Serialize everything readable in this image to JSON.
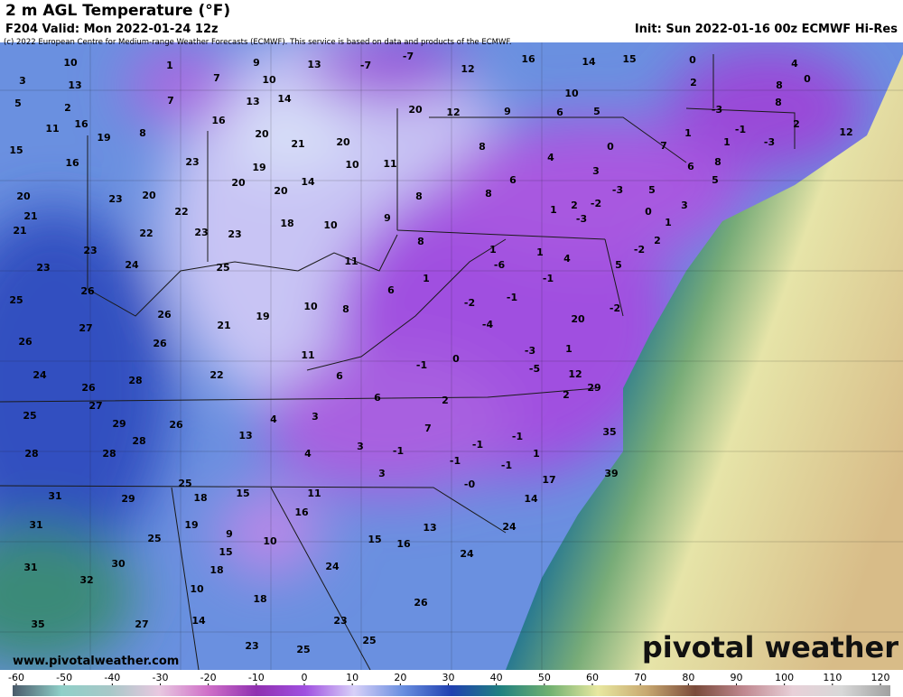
{
  "header": {
    "title": "2 m AGL Temperature (°F)",
    "valid": "F204 Valid: Mon 2022-01-24 12z",
    "init": "Init: Sun 2022-01-16 00z ECMWF Hi-Res",
    "credit": "(c) 2022 European Centre for Medium-range Weather Forecasts (ECMWF). This service is based on data and products of the ECMWF."
  },
  "map": {
    "website": "www.pivotalweather.com",
    "logo": "pivotal weather",
    "labels": [
      "10",
      "3",
      "13",
      "5",
      "2",
      "11",
      "16",
      "19",
      "8",
      "1",
      "7",
      "9",
      "10",
      "7",
      "13",
      "14",
      "13",
      "-7",
      "-7",
      "12",
      "16",
      "14",
      "15",
      "0",
      "2",
      "4",
      "0",
      "8",
      "8",
      "10",
      "20",
      "12",
      "9",
      "6",
      "5",
      "16",
      "20",
      "21",
      "20",
      "15",
      "16",
      "23",
      "19",
      "10",
      "11",
      "20",
      "23",
      "20",
      "22",
      "20",
      "20",
      "14",
      "21",
      "21",
      "22",
      "23",
      "23",
      "18",
      "10",
      "9",
      "8",
      "8",
      "8",
      "6",
      "4",
      "3",
      "0",
      "7",
      "1",
      "-3",
      "-1",
      "-3",
      "2",
      "1",
      "12",
      "6",
      "8",
      "5",
      "5",
      "-3",
      "-2",
      "2",
      "1",
      "-3",
      "0",
      "3",
      "1",
      "-2",
      "2",
      "8",
      "1",
      "4",
      "1",
      "23",
      "24",
      "25",
      "11",
      "23",
      "25",
      "26",
      "26",
      "21",
      "19",
      "10",
      "8",
      "6",
      "1",
      "-6",
      "-1",
      "5",
      "-2",
      "-1",
      "-2",
      "-4",
      "20",
      "27",
      "26",
      "26",
      "11",
      "6",
      "22",
      "-3",
      "1",
      "-5",
      "0",
      "-1",
      "12",
      "24",
      "26",
      "28",
      "29",
      "2",
      "6",
      "2",
      "27",
      "25",
      "29",
      "4",
      "3",
      "26",
      "7",
      "-1",
      "-1",
      "35",
      "28",
      "28",
      "28",
      "13",
      "3",
      "-1",
      "4",
      "1",
      "-1",
      "-1",
      "3",
      "-0",
      "17",
      "39",
      "25",
      "31",
      "29",
      "18",
      "15",
      "11",
      "14",
      "16",
      "31",
      "19",
      "9",
      "25",
      "10",
      "13",
      "24",
      "15",
      "15",
      "16",
      "31",
      "30",
      "18",
      "24",
      "24",
      "32",
      "10",
      "18",
      "26",
      "35",
      "27",
      "14",
      "23",
      "25",
      "23",
      "25"
    ]
  },
  "colorbar": {
    "ticks": [
      -60,
      -50,
      -40,
      -30,
      -20,
      -10,
      0,
      10,
      20,
      30,
      40,
      50,
      60,
      70,
      80,
      90,
      100,
      110,
      120
    ],
    "colors": [
      "#4a5a6a",
      "#8fcfc8",
      "#a8c8c8",
      "#e8c8e0",
      "#d070c8",
      "#9030b0",
      "#a050e0",
      "#d8d0f8",
      "#6a8fe0",
      "#2040b0",
      "#208080",
      "#70b070",
      "#e8e8a0",
      "#c8a870",
      "#7a4a3a",
      "#c08890",
      "#e8d0d8",
      "#d8d8d8",
      "#a0a0a0"
    ]
  }
}
